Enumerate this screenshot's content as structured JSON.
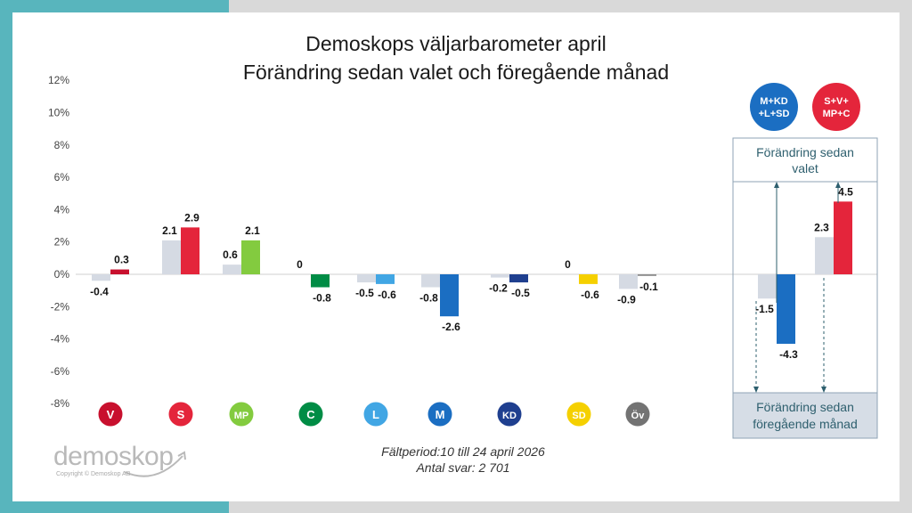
{
  "title_line1": "Demoskops väljarbarometer april",
  "title_line2": "Förändring sedan valet och föregående månad",
  "footer_line1": "Fältperiod:10 till 24 april 2026",
  "footer_line2": "Antal svar: 2 701",
  "logo_text": "demoskop",
  "copyright": "Copyright © Demoskop AB",
  "chart_data": {
    "type": "bar",
    "yticks": [
      "12%",
      "10%",
      "8%",
      "6%",
      "4%",
      "2%",
      "0%",
      "-2%",
      "-4%",
      "-6%",
      "-8%"
    ],
    "ylim": [
      -8,
      12
    ],
    "categories": [
      "V",
      "S",
      "MP",
      "C",
      "L",
      "M",
      "KD",
      "SD",
      "Öv"
    ],
    "series": [
      {
        "values": [
          -0.4,
          2.1,
          0.6,
          0,
          -0.5,
          -0.8,
          -0.2,
          0,
          -0.9
        ],
        "labels": [
          "-0.4",
          "2.1",
          "0.6",
          "0",
          "-0.5",
          "-0.8",
          "-0.2",
          "0",
          "-0.9"
        ],
        "color": "#d5dae3"
      },
      {
        "values": [
          0.3,
          2.9,
          2.1,
          -0.8,
          -0.6,
          -2.6,
          -0.5,
          -0.6,
          -0.1
        ],
        "labels": [
          "0.3",
          "2.9",
          "2.1",
          "-0.8",
          "-0.6",
          "-2.6",
          "-0.5",
          "-0.6",
          "-0.1"
        ],
        "colors": [
          "#c8102e",
          "#e4253b",
          "#83cb3f",
          "#008c45",
          "#41a6e4",
          "#1b6ec2",
          "#1f3f8f",
          "#f5d000",
          "#8c8c8c"
        ]
      }
    ],
    "party_badge_colors": [
      "#c8102e",
      "#e4253b",
      "#83cb3f",
      "#008c45",
      "#41a6e4",
      "#1b6ec2",
      "#1f3f8f",
      "#f5d000",
      "#737373"
    ],
    "blocs": [
      {
        "name": "M+KD\n+L+SD",
        "valet": -1.5,
        "manad": -4.3,
        "valet_label": "-1.5",
        "manad_label": "-4.3",
        "color": "#1b6ec2"
      },
      {
        "name": "S+V+\nMP+C",
        "valet": 2.3,
        "manad": 4.5,
        "valet_label": "2.3",
        "manad_label": "4.5",
        "color": "#e4253b"
      }
    ],
    "box_top_label": "Förändring sedan\nvalet",
    "box_bottom_label": "Förändring sedan\nföregående månad"
  }
}
